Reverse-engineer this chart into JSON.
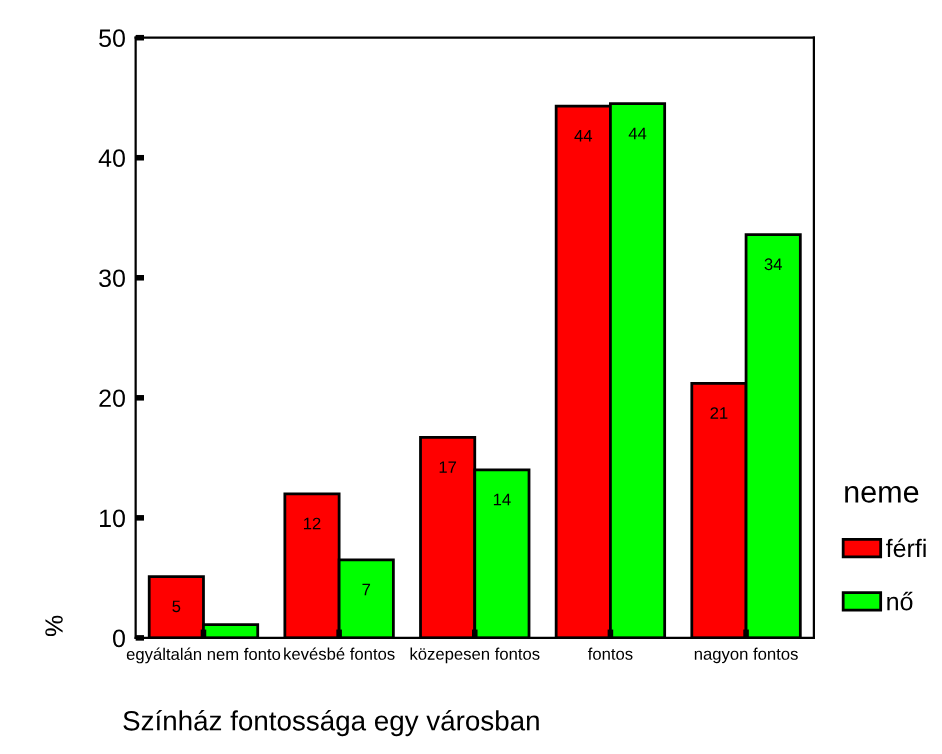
{
  "chart_data": {
    "type": "bar",
    "xlabel": "Színház fontossága egy városban",
    "ylabel": "%",
    "legend_title": "neme",
    "categories": [
      "egyáltalán nem fonto",
      "kevésbé fontos",
      "közepesen fontos",
      "fontos",
      "nagyon fontos"
    ],
    "series": [
      {
        "name": "férfi",
        "color": "#ff0000",
        "values": [
          5.1,
          12.0,
          16.7,
          44.3,
          21.2
        ],
        "value_labels": [
          "5",
          "12",
          "17",
          "44",
          "21"
        ]
      },
      {
        "name": "nő",
        "color": "#00ff00",
        "values": [
          1.1,
          6.5,
          14.0,
          44.5,
          33.6
        ],
        "value_labels": [
          null,
          "7",
          "14",
          "44",
          "34"
        ]
      }
    ],
    "ylim": [
      0,
      50
    ],
    "yticks": [
      0,
      10,
      20,
      30,
      40,
      50
    ],
    "grid": false,
    "legend": "right"
  }
}
